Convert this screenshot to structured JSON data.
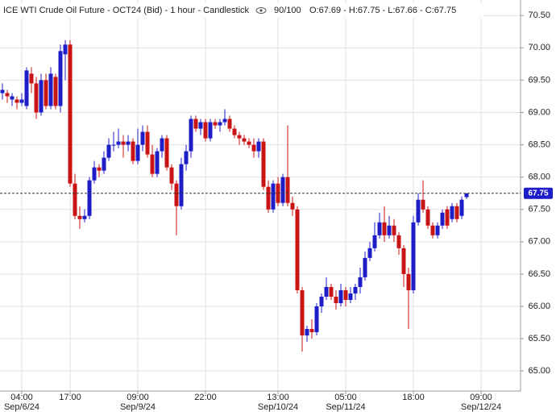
{
  "chart_data": {
    "type": "candlestick",
    "title": "ICE WTI Crude Oil Future - OCT24 (Bid) - 1 hour - Candlestick",
    "subtitle": "90/100",
    "ohlc_label": "O:67.69 - H:67.75 - L:67.66 - C:67.75",
    "up_color": "#1c1cc8",
    "down_color": "#c81414",
    "grid": true,
    "last_price": 67.75,
    "last_price_color": "#1c1cc8",
    "ylim": [
      64.69,
      70.74
    ],
    "yticks": [
      {
        "value": 65,
        "label": "65.00"
      },
      {
        "value": 65.5,
        "label": "65.50"
      },
      {
        "value": 66,
        "label": "66.00"
      },
      {
        "value": 66.5,
        "label": "66.50"
      },
      {
        "value": 67,
        "label": "67.00"
      },
      {
        "value": 67.5,
        "label": "67.50"
      },
      {
        "value": 68,
        "label": "68.00"
      },
      {
        "value": 68.5,
        "label": "68.50"
      },
      {
        "value": 69,
        "label": "69.00"
      },
      {
        "value": 69.5,
        "label": "69.50"
      },
      {
        "value": 70,
        "label": "70.00"
      },
      {
        "value": 70.5,
        "label": "70.50"
      }
    ],
    "categories": [
      null,
      null,
      null,
      null,
      "04:00",
      null,
      null,
      null,
      null,
      null,
      null,
      null,
      null,
      null,
      "17:00",
      null,
      null,
      null,
      null,
      null,
      null,
      null,
      null,
      null,
      null,
      null,
      null,
      null,
      "09:00",
      null,
      null,
      null,
      null,
      null,
      null,
      null,
      null,
      null,
      null,
      null,
      null,
      null,
      "22:00",
      null,
      null,
      null,
      null,
      null,
      null,
      null,
      null,
      null,
      null,
      null,
      null,
      null,
      null,
      "13:00",
      null,
      null,
      null,
      null,
      null,
      null,
      null,
      null,
      null,
      null,
      null,
      null,
      null,
      "05:00",
      null,
      null,
      null,
      null,
      null,
      null,
      null,
      null,
      null,
      null,
      null,
      null,
      null,
      "18:00",
      null,
      null,
      null,
      null,
      null,
      null,
      null,
      null,
      null,
      null,
      null,
      null,
      null,
      "09:00"
    ],
    "dates": [
      null,
      null,
      null,
      null,
      "Sep/6/24",
      null,
      null,
      null,
      null,
      null,
      null,
      null,
      null,
      null,
      null,
      null,
      null,
      null,
      null,
      null,
      null,
      null,
      null,
      null,
      null,
      null,
      null,
      null,
      "Sep/9/24",
      null,
      null,
      null,
      null,
      null,
      null,
      null,
      null,
      null,
      null,
      null,
      null,
      null,
      null,
      null,
      null,
      null,
      null,
      null,
      null,
      null,
      null,
      null,
      null,
      null,
      null,
      null,
      null,
      "Sep/10/24",
      null,
      null,
      null,
      null,
      null,
      null,
      null,
      null,
      null,
      null,
      null,
      null,
      null,
      "Sep/11/24",
      null,
      null,
      null,
      null,
      null,
      null,
      null,
      null,
      null,
      null,
      null,
      null,
      null,
      null,
      null,
      null,
      null,
      null,
      null,
      null,
      null,
      null,
      null,
      null,
      null,
      null,
      null,
      "Sep/12/24"
    ],
    "open": [
      69.3,
      69.3,
      69.2,
      69.2,
      69.15,
      69.1,
      69.6,
      69.45,
      69.0,
      69.5,
      69.1,
      69.55,
      69.1,
      69.9,
      70.05,
      67.9,
      67.4,
      67.35,
      67.4,
      67.95,
      68.15,
      68.1,
      68.3,
      68.5,
      68.5,
      68.55,
      68.5,
      68.55,
      68.25,
      68.5,
      68.7,
      68.35,
      68.05,
      68.4,
      68.6,
      68.15,
      67.9,
      67.55,
      68.2,
      68.4,
      68.9,
      68.75,
      68.85,
      68.6,
      68.85,
      68.8,
      68.85,
      68.9,
      68.75,
      68.65,
      68.6,
      68.55,
      68.5,
      68.4,
      68.55,
      67.85,
      67.5,
      67.9,
      67.6,
      68.0,
      67.6,
      67.5,
      66.25,
      65.55,
      65.65,
      65.6,
      66.0,
      66.15,
      66.3,
      66.15,
      66.05,
      66.25,
      66.1,
      66.2,
      66.3,
      66.45,
      66.75,
      66.9,
      67.1,
      67.3,
      67.1,
      67.25,
      67.1,
      66.9,
      66.5,
      66.25,
      67.3,
      67.65,
      67.5,
      67.25,
      67.1,
      67.25,
      67.5,
      67.35,
      67.55,
      67.4,
      67.69,
      null,
      null,
      null
    ],
    "high": [
      69.45,
      69.35,
      69.3,
      69.25,
      69.3,
      69.7,
      69.7,
      69.55,
      69.6,
      69.6,
      69.7,
      69.6,
      70.05,
      70.12,
      70.12,
      68.05,
      67.55,
      67.5,
      68.0,
      68.25,
      68.2,
      68.4,
      68.6,
      68.7,
      68.75,
      68.65,
      68.65,
      68.6,
      68.75,
      68.8,
      68.8,
      68.5,
      68.45,
      68.65,
      68.65,
      68.2,
      67.95,
      68.3,
      68.5,
      68.95,
      68.95,
      68.9,
      68.9,
      68.9,
      68.9,
      68.9,
      69.05,
      68.95,
      68.8,
      68.7,
      68.65,
      68.6,
      68.6,
      68.6,
      68.6,
      67.95,
      67.95,
      68.0,
      68.05,
      68.8,
      67.7,
      67.55,
      66.3,
      65.7,
      65.8,
      66.05,
      66.2,
      66.45,
      66.35,
      66.25,
      66.35,
      66.3,
      66.3,
      66.35,
      66.6,
      66.85,
      67.0,
      67.3,
      67.45,
      67.55,
      67.4,
      67.35,
      67.15,
      66.95,
      66.6,
      67.4,
      67.75,
      67.95,
      67.55,
      67.3,
      67.3,
      67.5,
      67.55,
      67.6,
      67.6,
      67.7,
      67.75,
      null,
      null,
      null
    ],
    "low": [
      69.2,
      69.15,
      69.1,
      69.05,
      69.1,
      69.05,
      69.3,
      68.9,
      68.95,
      69.05,
      69.05,
      69.05,
      69.0,
      69.5,
      67.85,
      67.35,
      67.2,
      67.3,
      67.35,
      67.9,
      68.0,
      68.05,
      68.25,
      68.4,
      68.45,
      68.3,
      68.4,
      68.2,
      68.2,
      68.4,
      68.3,
      68.0,
      68.0,
      68.3,
      68.1,
      67.8,
      67.1,
      67.5,
      68.1,
      68.3,
      68.7,
      68.65,
      68.55,
      68.55,
      68.75,
      68.7,
      68.8,
      68.7,
      68.6,
      68.5,
      68.5,
      68.45,
      68.3,
      68.3,
      67.8,
      67.45,
      67.45,
      67.55,
      67.55,
      67.55,
      67.4,
      66.2,
      65.3,
      65.45,
      65.5,
      65.55,
      65.9,
      66.1,
      66.1,
      65.95,
      66.0,
      66.0,
      66.05,
      66.1,
      66.2,
      66.4,
      66.7,
      66.85,
      67.05,
      67.0,
      67.05,
      67.0,
      66.8,
      66.3,
      65.65,
      66.2,
      67.25,
      67.45,
      67.2,
      67.05,
      67.05,
      67.2,
      67.2,
      67.3,
      67.3,
      67.35,
      67.66,
      null,
      null,
      null
    ],
    "close": [
      69.35,
      69.25,
      69.25,
      69.15,
      69.2,
      69.65,
      69.45,
      69.0,
      69.5,
      69.1,
      69.6,
      69.1,
      69.95,
      70.05,
      67.9,
      67.4,
      67.35,
      67.4,
      67.95,
      68.15,
      68.1,
      68.3,
      68.5,
      68.5,
      68.55,
      68.5,
      68.55,
      68.25,
      68.5,
      68.7,
      68.35,
      68.05,
      68.4,
      68.6,
      68.15,
      67.9,
      67.55,
      68.2,
      68.4,
      68.9,
      68.75,
      68.85,
      68.6,
      68.85,
      68.8,
      68.85,
      68.9,
      68.75,
      68.65,
      68.6,
      68.55,
      68.5,
      68.4,
      68.55,
      67.85,
      67.5,
      67.9,
      67.6,
      68.0,
      67.6,
      67.5,
      66.25,
      65.55,
      65.65,
      65.6,
      66.0,
      66.15,
      66.3,
      66.15,
      66.05,
      66.25,
      66.1,
      66.2,
      66.3,
      66.45,
      66.75,
      66.9,
      67.1,
      67.3,
      67.1,
      67.25,
      67.1,
      66.9,
      66.5,
      66.25,
      67.3,
      67.65,
      67.5,
      67.25,
      67.1,
      67.25,
      67.45,
      67.25,
      67.55,
      67.35,
      67.65,
      67.75,
      null,
      null,
      null
    ]
  }
}
